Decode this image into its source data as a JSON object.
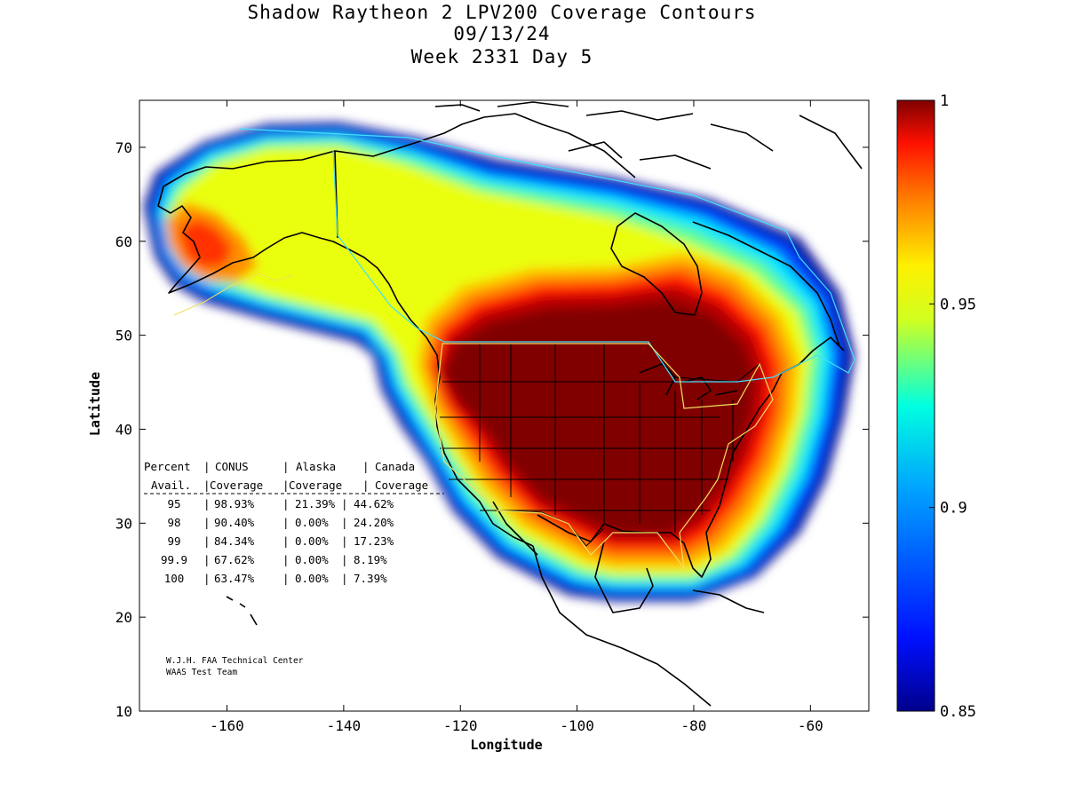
{
  "title_lines": [
    "Shadow Raytheon 2 LPV200 Coverage Contours",
    "09/13/24",
    "Week 2331 Day 5"
  ],
  "map": {
    "xlabel": "Longitude",
    "ylabel": "Latitude",
    "xlim": [
      -175,
      -50
    ],
    "ylim": [
      10,
      75
    ],
    "x_ticks": [
      -160,
      -140,
      -120,
      -100,
      -80,
      -60
    ],
    "y_ticks": [
      10,
      20,
      30,
      40,
      50,
      60,
      70
    ],
    "grid": false
  },
  "colorbar": {
    "min": 0.85,
    "max": 1,
    "tick_labels": [
      "1",
      "0.95",
      "0.9",
      "0.85"
    ],
    "colormap": "jet"
  },
  "stats_table": {
    "header1": [
      "Percent",
      "CONUS",
      "Alaska",
      "Canada"
    ],
    "header2": [
      "Avail.",
      "Coverage",
      "Coverage",
      "Coverage"
    ],
    "rows": [
      [
        "95",
        "98.93%",
        "21.39%",
        "44.62%"
      ],
      [
        "98",
        "90.40%",
        "0.00%",
        "24.20%"
      ],
      [
        "99",
        "84.34%",
        "0.00%",
        "17.23%"
      ],
      [
        "99.9",
        "67.62%",
        "0.00%",
        "8.19%"
      ],
      [
        "100",
        "63.47%",
        "0.00%",
        "7.39%"
      ]
    ]
  },
  "credit": [
    "W.J.H. FAA Technical Center",
    "WAAS Test Team"
  ],
  "colors": {
    "deep_red": "#800000",
    "red": "#ff1400",
    "orange": "#ff7a00",
    "yellow": "#eaff10",
    "cyan": "#00e4ff",
    "blue": "#0046ff",
    "navy": "#00008c",
    "service_area_outline_conus": "#f0e060",
    "service_area_outline_canada": "#40e0ff"
  }
}
